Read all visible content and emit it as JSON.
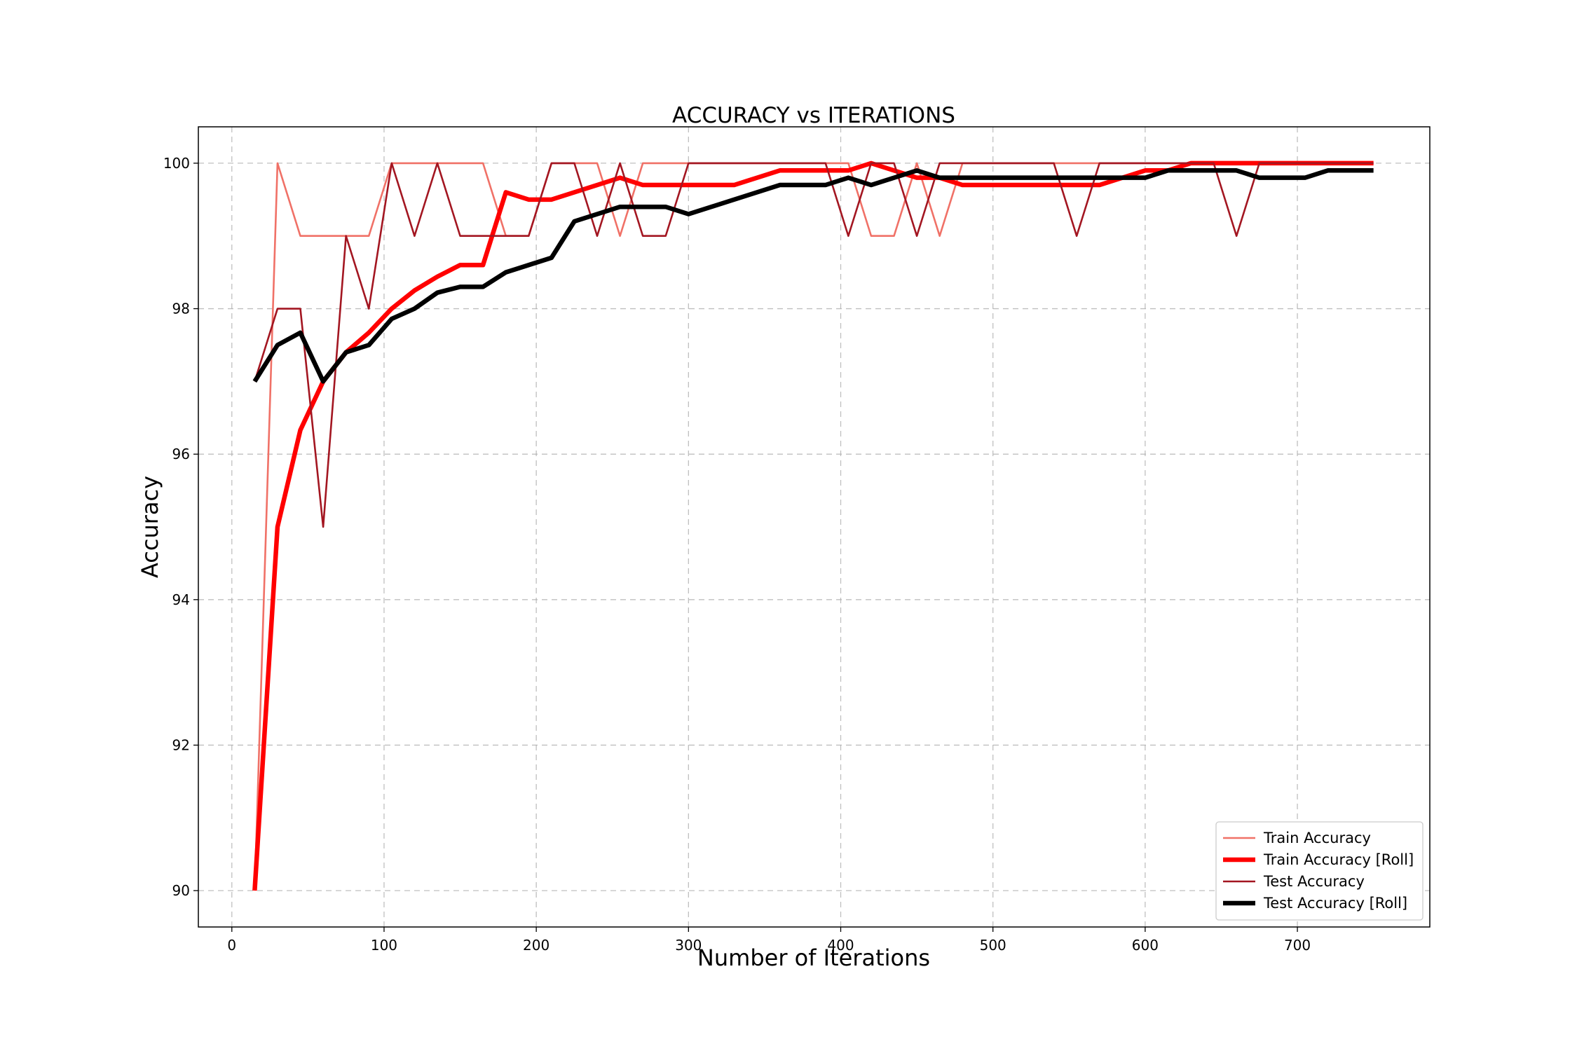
{
  "chart_data": {
    "type": "line",
    "title": "ACCURACY vs ITERATIONS",
    "xlabel": "Number of Iterations",
    "ylabel": "Accuracy",
    "xlim": [
      -22,
      787
    ],
    "ylim": [
      89.5,
      100.5
    ],
    "xticks": [
      0,
      100,
      200,
      300,
      400,
      500,
      600,
      700
    ],
    "yticks": [
      90,
      92,
      94,
      96,
      98,
      100
    ],
    "grid": true,
    "legend_position": "lower-right",
    "x": [
      15,
      30,
      45,
      60,
      75,
      90,
      105,
      120,
      135,
      150,
      165,
      180,
      195,
      210,
      225,
      240,
      255,
      270,
      285,
      300,
      315,
      330,
      345,
      360,
      375,
      390,
      405,
      420,
      435,
      450,
      465,
      480,
      495,
      510,
      525,
      540,
      555,
      570,
      585,
      600,
      615,
      630,
      645,
      660,
      675,
      690,
      705,
      720,
      735,
      750
    ],
    "series": [
      {
        "name": "Train Accuracy",
        "color": "#f07167",
        "width": 2.6,
        "values": [
          90,
          100,
          99,
          99,
          99,
          99,
          100,
          100,
          100,
          100,
          100,
          99,
          99,
          100,
          100,
          100,
          99,
          100,
          100,
          100,
          100,
          100,
          100,
          100,
          100,
          100,
          100,
          99,
          99,
          100,
          99,
          100,
          100,
          100,
          100,
          100,
          100,
          100,
          100,
          100,
          100,
          100,
          100,
          100,
          100,
          100,
          100,
          100,
          100,
          100
        ]
      },
      {
        "name": "Train Accuracy [Roll]",
        "color": "#ff0000",
        "width": 6.5,
        "values": [
          90,
          95,
          96.33,
          97,
          97.4,
          97.67,
          98,
          98.25,
          98.44,
          98.6,
          98.6,
          99.6,
          99.5,
          99.5,
          99.6,
          99.7,
          99.8,
          99.7,
          99.7,
          99.7,
          99.7,
          99.7,
          99.8,
          99.9,
          99.9,
          99.9,
          99.9,
          100,
          99.9,
          99.8,
          99.8,
          99.7,
          99.7,
          99.7,
          99.7,
          99.7,
          99.7,
          99.7,
          99.8,
          99.9,
          99.9,
          100,
          100,
          100,
          100,
          100,
          100,
          100,
          100,
          100
        ]
      },
      {
        "name": "Test Accuracy",
        "color": "#a31621",
        "width": 2.6,
        "values": [
          97,
          98,
          98,
          95,
          99,
          98,
          100,
          99,
          100,
          99,
          99,
          99,
          99,
          100,
          100,
          99,
          100,
          99,
          99,
          100,
          100,
          100,
          100,
          100,
          100,
          100,
          99,
          100,
          100,
          99,
          100,
          100,
          100,
          100,
          100,
          100,
          99,
          100,
          100,
          100,
          100,
          100,
          100,
          99,
          100,
          100,
          100,
          100,
          100,
          100
        ]
      },
      {
        "name": "Test Accuracy [Roll]",
        "color": "#000000",
        "width": 6.5,
        "values": [
          97,
          97.5,
          97.67,
          97,
          97.4,
          97.5,
          97.86,
          98,
          98.22,
          98.3,
          98.3,
          98.5,
          98.6,
          98.7,
          99.2,
          99.3,
          99.4,
          99.4,
          99.4,
          99.3,
          99.4,
          99.5,
          99.6,
          99.7,
          99.7,
          99.7,
          99.8,
          99.7,
          99.8,
          99.9,
          99.8,
          99.8,
          99.8,
          99.8,
          99.8,
          99.8,
          99.8,
          99.8,
          99.8,
          99.8,
          99.9,
          99.9,
          99.9,
          99.9,
          99.8,
          99.8,
          99.8,
          99.9,
          99.9,
          99.9
        ]
      }
    ]
  }
}
